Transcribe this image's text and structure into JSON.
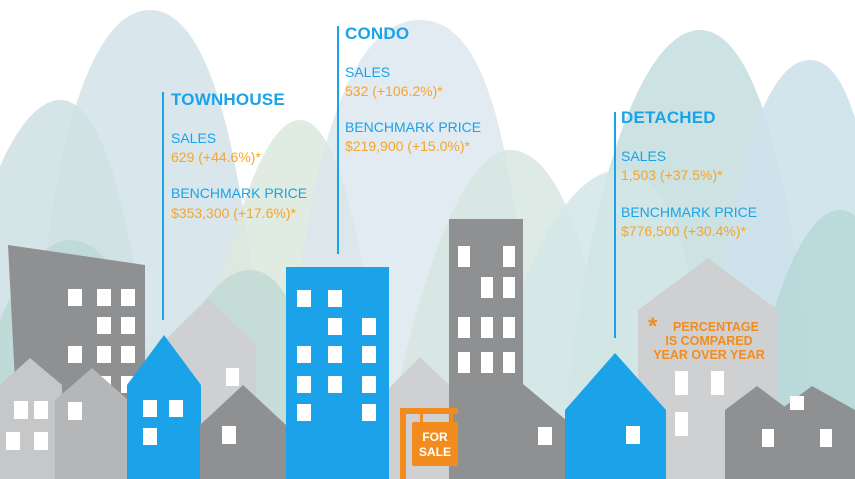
{
  "townhouse": {
    "title": "TOWNHOUSE",
    "sales_label": "SALES",
    "sales_value": "629 (+44.6%)*",
    "price_label": "BENCHMARK PRICE",
    "price_value": "$353,300 (+17.6%)*"
  },
  "condo": {
    "title": "CONDO",
    "sales_label": "SALES",
    "sales_value": "532 (+106.2%)*",
    "price_label": "BENCHMARK PRICE",
    "price_value": "$219,900 (+15.0%)*"
  },
  "detached": {
    "title": "DETACHED",
    "sales_label": "SALES",
    "sales_value": "1,503 (+37.5%)*",
    "price_label": "BENCHMARK PRICE",
    "price_value": "$776,500 (+30.4%)*"
  },
  "note": {
    "star": "*",
    "line1": "PERCENTAGE",
    "line2": "IS COMPARED",
    "line3": "YEAR OVER YEAR"
  },
  "sign": {
    "line1": "FOR",
    "line2": "SALE"
  },
  "colors": {
    "accent_blue": "#1aa3e8",
    "value_orange": "#f5a52b",
    "sign_orange": "#f28c1e",
    "building_gray": "#8f9092",
    "building_light": "#cfd0d1"
  }
}
